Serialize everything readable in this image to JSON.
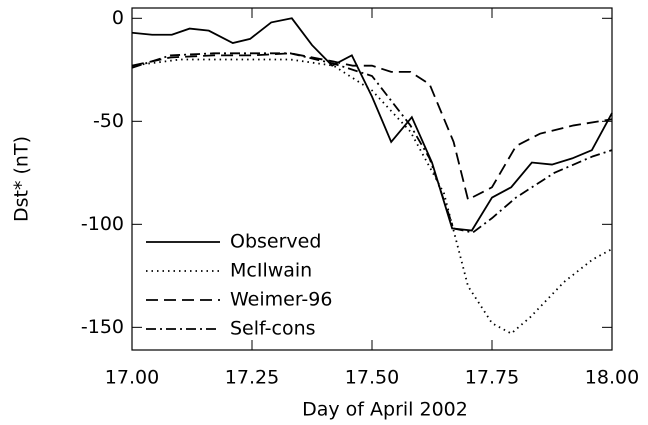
{
  "chart_data": {
    "type": "line",
    "xlabel": "Day of April 2002",
    "ylabel": "Dst* (nT)",
    "xlim": [
      17.0,
      18.0
    ],
    "ylim": [
      -161,
      5
    ],
    "xticks": [
      {
        "value": 17.0,
        "label": "17.00"
      },
      17.25,
      {
        "value": 17.5,
        "label": "17.50"
      },
      17.75,
      {
        "value": 18.0,
        "label": "18.00"
      }
    ],
    "yticks": [
      0,
      -50,
      -100,
      -150
    ],
    "legend": "lower left",
    "series": [
      {
        "name": "Observed",
        "color": "#000000",
        "dash": "solid",
        "x": [
          17.0,
          17.042,
          17.083,
          17.12,
          17.16,
          17.21,
          17.246,
          17.29,
          17.333,
          17.375,
          17.417,
          17.458,
          17.5,
          17.54,
          17.583,
          17.625,
          17.667,
          17.708,
          17.75,
          17.79,
          17.833,
          17.875,
          17.917,
          17.958,
          18.0
        ],
        "values": [
          -7,
          -8,
          -8,
          -5,
          -6,
          -12,
          -10,
          -2,
          0,
          -13,
          -23,
          -18,
          -38,
          -60,
          -48,
          -70,
          -102,
          -103,
          -87,
          -82,
          -70,
          -71,
          -68,
          -64,
          -46
        ]
      },
      {
        "name": "McIlwain",
        "color": "#000000",
        "dash": "dotted",
        "x": [
          17.0,
          17.1,
          17.2,
          17.33,
          17.42,
          17.5,
          17.58,
          17.65,
          17.7,
          17.75,
          17.79,
          17.83,
          17.9,
          17.96,
          18.0
        ],
        "values": [
          -23,
          -20,
          -20,
          -20,
          -23,
          -35,
          -55,
          -85,
          -130,
          -148,
          -153,
          -145,
          -128,
          -117,
          -112
        ]
      },
      {
        "name": "Weimer-96",
        "color": "#000000",
        "dash": "dashed",
        "x": [
          17.0,
          17.08,
          17.17,
          17.25,
          17.33,
          17.42,
          17.46,
          17.5,
          17.54,
          17.58,
          17.62,
          17.67,
          17.7,
          17.75,
          17.8,
          17.85,
          17.92,
          18.0
        ],
        "values": [
          -23,
          -19,
          -18,
          -18,
          -17,
          -21,
          -23,
          -23,
          -26,
          -26,
          -32,
          -60,
          -88,
          -82,
          -62,
          -56,
          -52,
          -49
        ]
      },
      {
        "name": "Self-cons",
        "color": "#000000",
        "dash": "dashdot",
        "x": [
          17.0,
          17.08,
          17.17,
          17.25,
          17.33,
          17.42,
          17.5,
          17.54,
          17.58,
          17.62,
          17.67,
          17.71,
          17.75,
          17.8,
          17.88,
          17.96,
          18.0
        ],
        "values": [
          -24,
          -18,
          -17,
          -17,
          -17,
          -22,
          -28,
          -40,
          -52,
          -68,
          -102,
          -104,
          -97,
          -87,
          -75,
          -67,
          -64
        ]
      }
    ]
  }
}
